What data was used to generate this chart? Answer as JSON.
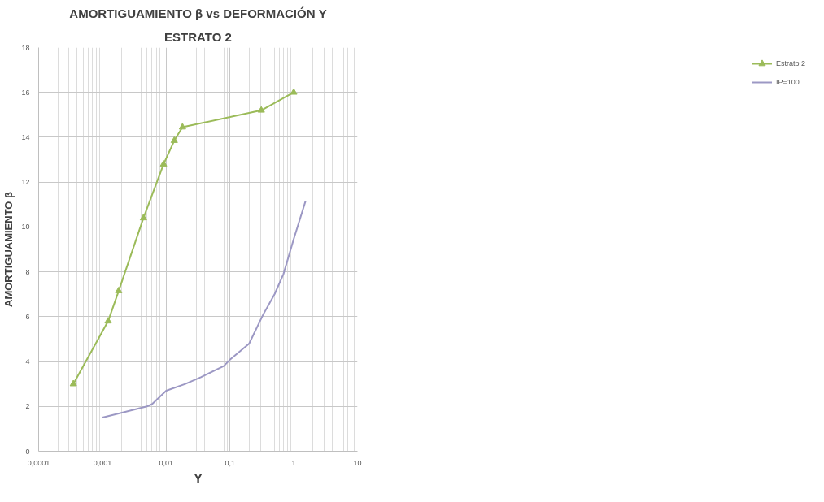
{
  "chart_data": {
    "type": "line",
    "title": "AMORTIGUAMIENTO β vs DEFORMACIÓN Υ",
    "subtitle": "ESTRATO 2",
    "xlabel": "Υ",
    "ylabel": "AMORTIGUAMIENTO β",
    "log": "x",
    "grid": true,
    "legend": "right",
    "xlim": [
      0.0001,
      10
    ],
    "xticks": [
      {
        "value": 0.0001,
        "label": "0,0001"
      },
      {
        "value": 0.001,
        "label": "0,001"
      },
      {
        "value": 0.01,
        "label": "0,01"
      },
      {
        "value": 0.1,
        "label": "0,1"
      },
      1,
      10
    ],
    "ylim": [
      0,
      18
    ],
    "yticks": [
      0,
      2,
      4,
      6,
      8,
      10,
      12,
      14,
      16,
      18
    ],
    "series": [
      {
        "name": "Estrato 2",
        "color": "#9bbb59",
        "marker": "triangle",
        "x": [
          0.00035,
          0.00123,
          0.0018,
          0.0044,
          0.0091,
          0.0134,
          0.018,
          0.31,
          1
        ],
        "values": [
          3.0,
          5.8,
          7.15,
          10.4,
          12.8,
          13.85,
          14.45,
          15.2,
          16
        ]
      },
      {
        "name": "IP=100",
        "color": "#9c98c4",
        "marker": "none",
        "x": [
          0.001,
          0.005,
          0.006,
          0.01,
          0.02,
          0.035,
          0.08,
          0.1,
          0.2,
          0.33,
          0.5,
          0.69,
          1,
          1.53
        ],
        "values": [
          1.5,
          2.0,
          2.1,
          2.7,
          3.0,
          3.3,
          3.8,
          4.08,
          4.8,
          6.08,
          7.0,
          7.9,
          9.46,
          11.15
        ]
      }
    ]
  }
}
